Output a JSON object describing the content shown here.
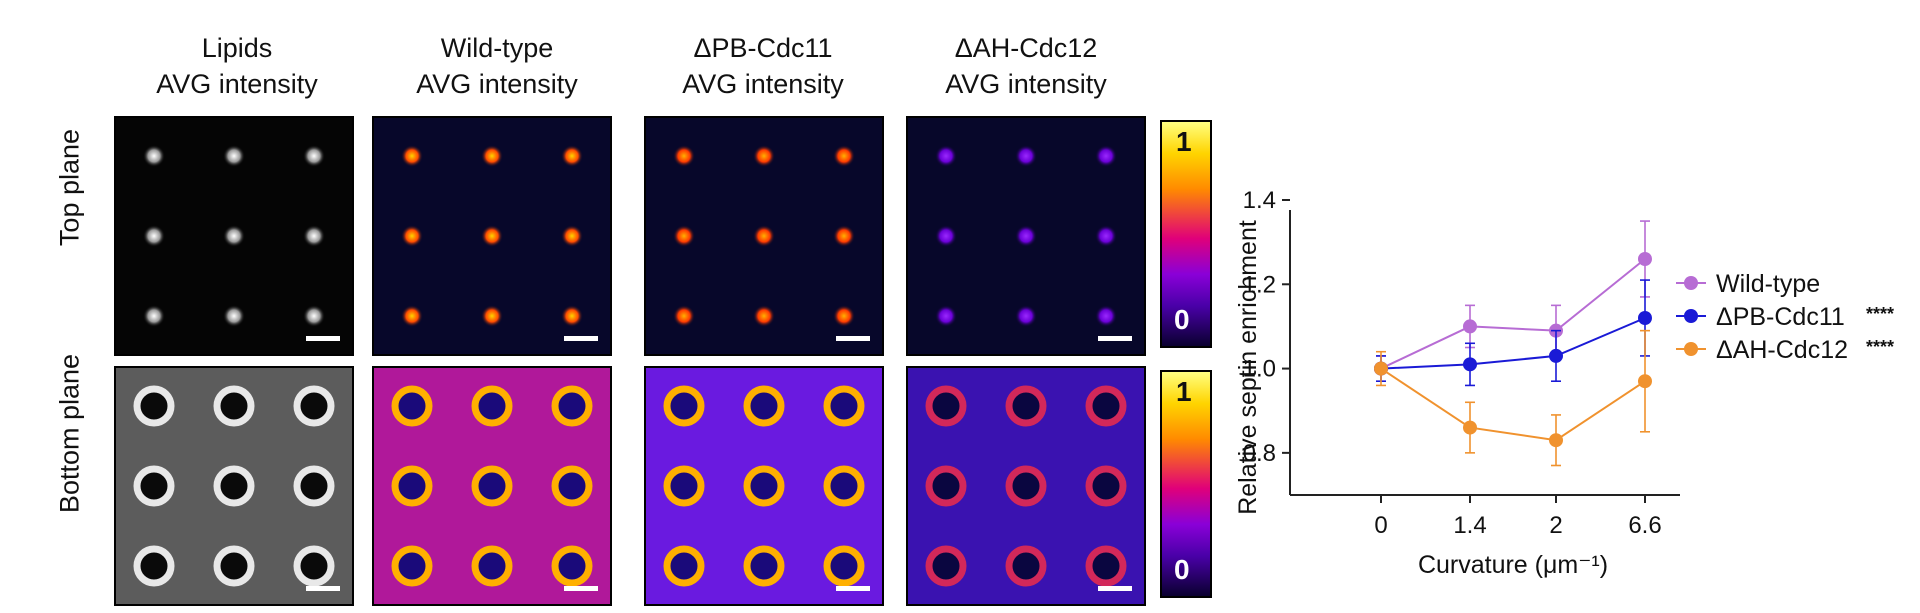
{
  "columns": [
    {
      "line1": "Lipids",
      "line2": "AVG intensity"
    },
    {
      "line1": "Wild-type",
      "line2": "AVG intensity"
    },
    {
      "line1": "ΔPB-Cdc11",
      "line2": "AVG intensity"
    },
    {
      "line1": "ΔAH-Cdc12",
      "line2": "AVG intensity"
    }
  ],
  "rows": [
    "Top plane",
    "Bottom plane"
  ],
  "colorbar": {
    "max_label": "1",
    "min_label": "0"
  },
  "colors": {
    "wildtype": "#b76cd4",
    "pb": "#1a1ad6",
    "ah": "#f0922e"
  },
  "chart_data": {
    "type": "line",
    "xlabel": "Curvature (μm⁻¹)",
    "ylabel": "Relative septin enrichment",
    "categories": [
      "0",
      "1.4",
      "2",
      "6.6"
    ],
    "ylim": [
      0.7,
      1.4
    ],
    "yticks": [
      "0.8",
      "1.0",
      "1.2",
      "1.4"
    ],
    "series": [
      {
        "name": "Wild-type",
        "values": [
          1.0,
          1.1,
          1.09,
          1.26
        ],
        "err": [
          0.03,
          0.05,
          0.06,
          0.09
        ],
        "significance": ""
      },
      {
        "name": "ΔPB-Cdc11",
        "values": [
          1.0,
          1.01,
          1.03,
          1.12
        ],
        "err": [
          0.03,
          0.05,
          0.06,
          0.09
        ],
        "significance": "****"
      },
      {
        "name": "ΔAH-Cdc12",
        "values": [
          1.0,
          0.86,
          0.83,
          0.97
        ],
        "err": [
          0.04,
          0.06,
          0.06,
          0.12
        ],
        "significance": "****"
      }
    ],
    "legend": "right"
  }
}
